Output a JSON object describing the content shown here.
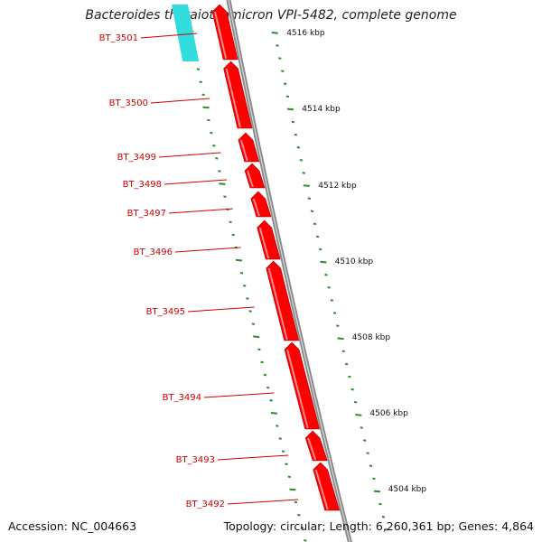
{
  "title": "Bacteroides thetaiotaomicron VPI-5482, complete genome",
  "footer": {
    "accession": "Accession: NC_004663",
    "stats": "Topology: circular; Length: 6,260,361 bp; Genes: 4,864"
  },
  "colors": {
    "gene": "#ff0000",
    "selected_gene": "#33dddd",
    "backbone": "#8a8a8a",
    "tick": "#2e8b2e",
    "label": "#cc0000"
  },
  "genes": [
    {
      "name": "BT_3501"
    },
    {
      "name": "BT_3500"
    },
    {
      "name": "BT_3499"
    },
    {
      "name": "BT_3498"
    },
    {
      "name": "BT_3497"
    },
    {
      "name": "BT_3496"
    },
    {
      "name": "BT_3495"
    },
    {
      "name": "BT_3494"
    },
    {
      "name": "BT_3493"
    },
    {
      "name": "BT_3492"
    }
  ],
  "ruler": [
    {
      "label": "4516 kbp"
    },
    {
      "label": "4514 kbp"
    },
    {
      "label": "4512 kbp"
    },
    {
      "label": "4510 kbp"
    },
    {
      "label": "4508 kbp"
    },
    {
      "label": "4506 kbp"
    },
    {
      "label": "4504 kbp"
    }
  ]
}
